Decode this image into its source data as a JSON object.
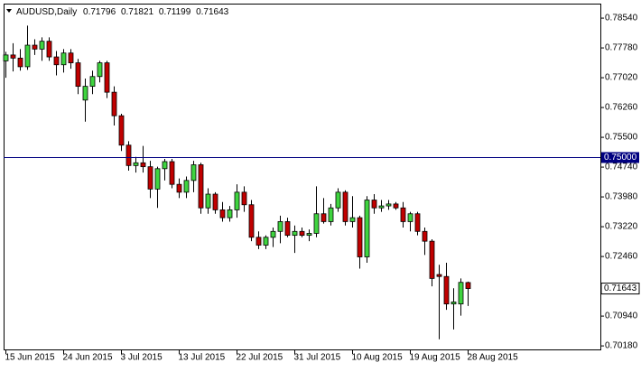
{
  "chart_data": {
    "type": "candlestick",
    "symbol": "AUDUSD,Daily",
    "header_values": [
      0.71796,
      0.71821,
      0.71199,
      0.71643
    ],
    "categories": [
      "15 Jun 2015",
      null,
      null,
      null,
      null,
      null,
      null,
      null,
      "24 Jun 2015",
      null,
      null,
      null,
      null,
      null,
      null,
      null,
      "3 Jul 2015",
      null,
      null,
      null,
      null,
      null,
      null,
      null,
      "13 Jul 2015",
      null,
      null,
      null,
      null,
      null,
      null,
      null,
      "22 Jul 2015",
      null,
      null,
      null,
      null,
      null,
      null,
      null,
      "31 Jul 2015",
      null,
      null,
      null,
      null,
      null,
      null,
      null,
      "10 Aug 2015",
      null,
      null,
      null,
      null,
      null,
      null,
      null,
      "19 Aug 2015",
      null,
      null,
      null,
      null,
      null,
      null,
      null,
      "28 Aug 2015"
    ],
    "open": [
      0.7745,
      0.776,
      0.7752,
      0.773,
      0.7785,
      0.7775,
      0.7795,
      0.7755,
      0.7735,
      0.7765,
      0.774,
      0.7645,
      0.768,
      0.7705,
      0.774,
      0.7665,
      0.7605,
      0.753,
      0.7478,
      0.7485,
      0.7475,
      0.7418,
      0.747,
      0.7488,
      0.743,
      0.741,
      0.744,
      0.748,
      0.737,
      0.7405,
      0.7365,
      0.7345,
      0.7365,
      0.741,
      0.7378,
      0.7295,
      0.7275,
      0.7295,
      0.731,
      0.7335,
      0.73,
      0.731,
      0.73,
      0.7305,
      0.7355,
      0.7335,
      0.737,
      0.741,
      0.7335,
      0.7345,
      0.7245,
      0.739,
      0.737,
      0.7375,
      0.738,
      0.737,
      0.7335,
      0.7355,
      0.731,
      0.7285,
      0.72,
      0.7195,
      0.7125,
      0.7125,
      0.71796
    ],
    "high": [
      0.7768,
      0.779,
      0.7775,
      0.7835,
      0.78,
      0.7805,
      0.7805,
      0.777,
      0.7775,
      0.7775,
      0.775,
      0.77,
      0.772,
      0.7745,
      0.7745,
      0.768,
      0.761,
      0.754,
      0.75,
      0.7528,
      0.749,
      0.7475,
      0.7495,
      0.7495,
      0.7445,
      0.745,
      0.749,
      0.7485,
      0.742,
      0.741,
      0.7385,
      0.7375,
      0.743,
      0.7425,
      0.739,
      0.731,
      0.73,
      0.732,
      0.735,
      0.7345,
      0.7325,
      0.732,
      0.7315,
      0.7425,
      0.7395,
      0.738,
      0.742,
      0.7415,
      0.74,
      0.735,
      0.74,
      0.7405,
      0.739,
      0.739,
      0.7385,
      0.7385,
      0.736,
      0.736,
      0.732,
      0.729,
      0.7225,
      0.723,
      0.7165,
      0.719,
      0.71821
    ],
    "low": [
      0.7702,
      0.7718,
      0.772,
      0.7722,
      0.776,
      0.7745,
      0.7745,
      0.7708,
      0.7715,
      0.7725,
      0.766,
      0.759,
      0.766,
      0.769,
      0.765,
      0.758,
      0.7515,
      0.7465,
      0.746,
      0.746,
      0.7395,
      0.737,
      0.744,
      0.742,
      0.7395,
      0.7395,
      0.741,
      0.7355,
      0.7355,
      0.7355,
      0.7335,
      0.7335,
      0.7345,
      0.736,
      0.7285,
      0.7265,
      0.7265,
      0.727,
      0.728,
      0.7295,
      0.7255,
      0.7295,
      0.7285,
      0.7295,
      0.733,
      0.7325,
      0.736,
      0.7325,
      0.732,
      0.7215,
      0.723,
      0.7355,
      0.736,
      0.7365,
      0.7365,
      0.732,
      0.731,
      0.73,
      0.725,
      0.717,
      0.7035,
      0.711,
      0.706,
      0.7095,
      0.71199
    ],
    "close": [
      0.776,
      0.7752,
      0.773,
      0.7785,
      0.7775,
      0.7795,
      0.7755,
      0.7735,
      0.7765,
      0.774,
      0.768,
      0.768,
      0.7705,
      0.774,
      0.7665,
      0.7605,
      0.753,
      0.7478,
      0.7485,
      0.7475,
      0.7418,
      0.747,
      0.7488,
      0.743,
      0.741,
      0.744,
      0.748,
      0.737,
      0.7405,
      0.7365,
      0.7345,
      0.7365,
      0.741,
      0.7378,
      0.7295,
      0.7275,
      0.7295,
      0.731,
      0.7335,
      0.73,
      0.731,
      0.73,
      0.7305,
      0.7355,
      0.7335,
      0.737,
      0.741,
      0.7335,
      0.7345,
      0.7245,
      0.739,
      0.737,
      0.7375,
      0.738,
      0.737,
      0.7335,
      0.7355,
      0.731,
      0.7285,
      0.719,
      0.7195,
      0.7125,
      0.713,
      0.718,
      0.71643
    ],
    "up_color": "#3fd43f",
    "down_color": "#c00000",
    "ylim": [
      0.7009,
      0.7891
    ],
    "yticks": [
      {
        "value": 0.7854,
        "label": "0.78540"
      },
      {
        "value": 0.7778,
        "label": "0.77780"
      },
      {
        "value": 0.7702,
        "label": "0.77020"
      },
      {
        "value": 0.7626,
        "label": "0.76260"
      },
      {
        "value": 0.755,
        "label": "0.75500"
      },
      {
        "value": 0.7474,
        "label": "0.74740"
      },
      {
        "value": 0.7398,
        "label": "0.73980"
      },
      {
        "value": 0.7322,
        "label": "0.73220"
      },
      {
        "value": 0.7246,
        "label": "0.72460"
      },
      {
        "value": 0.7094,
        "label": "0.70940"
      },
      {
        "value": 0.7018,
        "label": "0.70180"
      }
    ],
    "hline": {
      "value": 0.75,
      "label": "0.75000",
      "color": "#000080"
    }
  }
}
